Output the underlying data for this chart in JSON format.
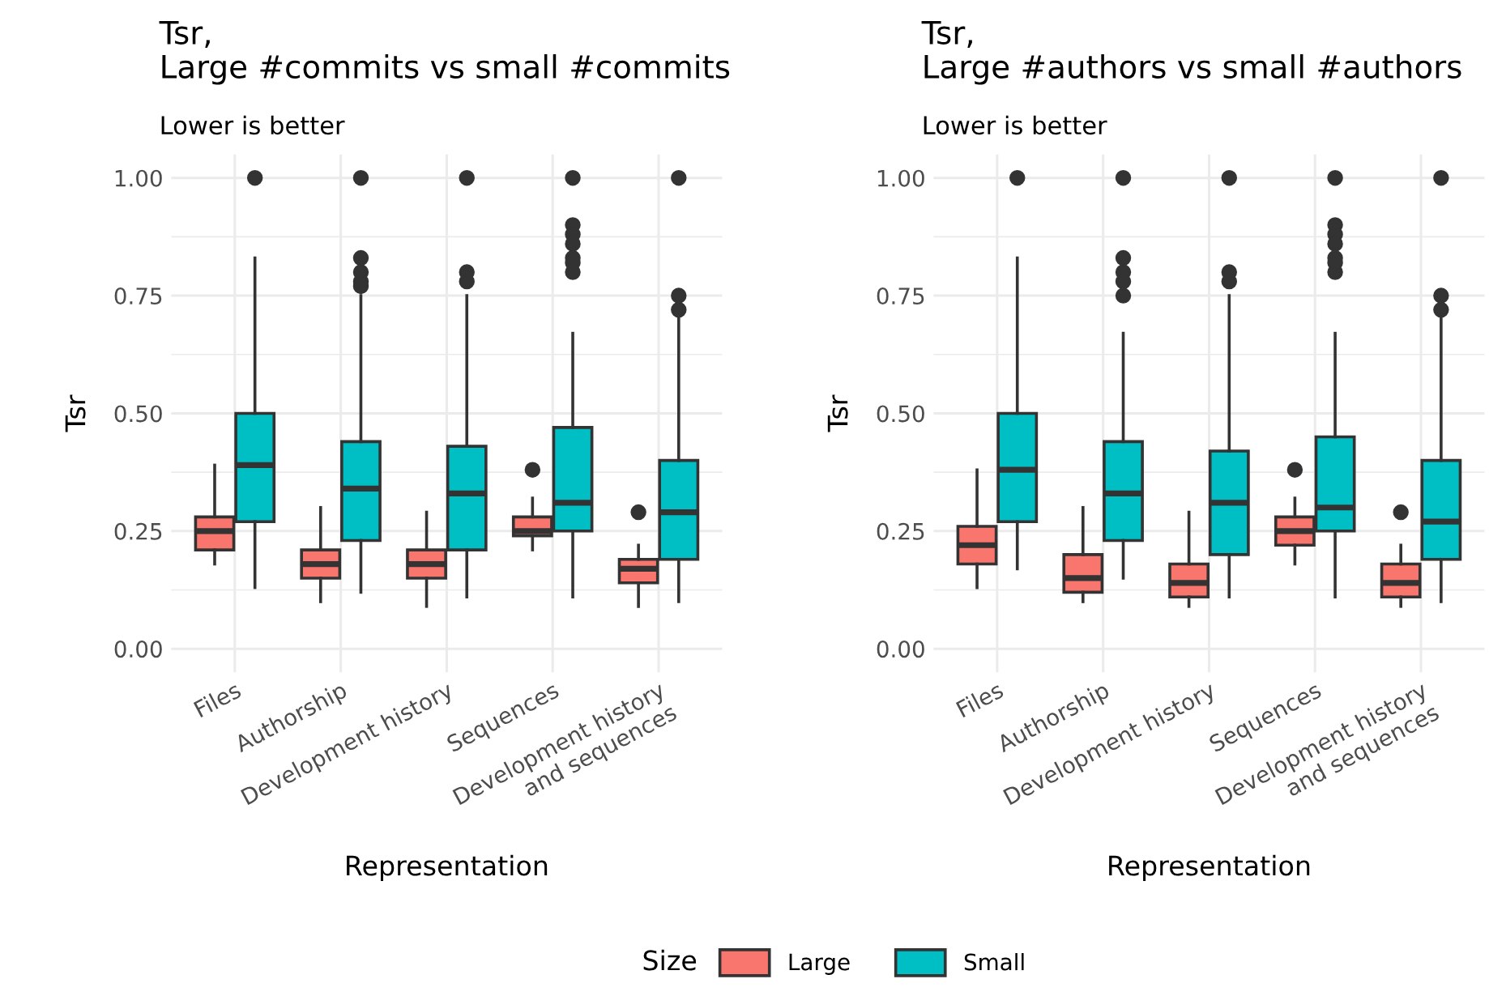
{
  "chart_data": [
    {
      "type": "box",
      "title": "Tsr,\nLarge #commits vs small #commits",
      "subtitle": "Lower is better",
      "xlabel": "Representation",
      "ylabel": "Tsr",
      "legend": "bottom",
      "legend_title": "Size",
      "grid": true,
      "ylim": [
        -0.05,
        1.05
      ],
      "yticks": [
        {
          "value": 0,
          "label": "0.00"
        },
        {
          "value": 0.25,
          "label": "0.25"
        },
        {
          "value": 0.5,
          "label": "0.50"
        },
        {
          "value": 0.75,
          "label": "0.75"
        },
        {
          "value": 1,
          "label": "1.00"
        }
      ],
      "categories": [
        "Files",
        "Authorship",
        "Development history",
        "Sequences",
        "Development history\nand sequences"
      ],
      "series": [
        {
          "name": "Large",
          "color": "#f8766d",
          "boxes": [
            {
              "low": 0.18,
              "q1": 0.21,
              "median": 0.25,
              "q3": 0.28,
              "high": 0.39
            },
            {
              "low": 0.1,
              "q1": 0.15,
              "median": 0.18,
              "q3": 0.21,
              "high": 0.3
            },
            {
              "low": 0.09,
              "q1": 0.15,
              "median": 0.18,
              "q3": 0.21,
              "high": 0.29
            },
            {
              "low": 0.21,
              "q1": 0.24,
              "median": 0.25,
              "q3": 0.28,
              "high": 0.32,
              "outliers": [
                0.38
              ]
            },
            {
              "low": 0.09,
              "q1": 0.14,
              "median": 0.17,
              "q3": 0.19,
              "high": 0.22,
              "outliers": [
                0.29
              ]
            }
          ]
        },
        {
          "name": "Small",
          "color": "#00bfc4",
          "boxes": [
            {
              "low": 0.13,
              "q1": 0.27,
              "median": 0.39,
              "q3": 0.5,
              "high": 0.83,
              "outliers": [
                1.0
              ]
            },
            {
              "low": 0.12,
              "q1": 0.23,
              "median": 0.34,
              "q3": 0.44,
              "high": 0.75,
              "outliers": [
                1.0,
                0.83,
                0.8,
                0.78,
                0.77
              ]
            },
            {
              "low": 0.11,
              "q1": 0.21,
              "median": 0.33,
              "q3": 0.43,
              "high": 0.75,
              "outliers": [
                1.0,
                0.8,
                0.78
              ]
            },
            {
              "low": 0.11,
              "q1": 0.25,
              "median": 0.31,
              "q3": 0.47,
              "high": 0.67,
              "outliers": [
                1.0,
                0.9,
                0.88,
                0.86,
                0.83,
                0.82,
                0.8
              ]
            },
            {
              "low": 0.1,
              "q1": 0.19,
              "median": 0.29,
              "q3": 0.4,
              "high": 0.72,
              "outliers": [
                1.0,
                0.75,
                0.72
              ]
            }
          ]
        }
      ]
    },
    {
      "type": "box",
      "title": "Tsr,\nLarge #authors vs small #authors",
      "subtitle": "Lower is better",
      "xlabel": "Representation",
      "ylabel": "Tsr",
      "grid": true,
      "ylim": [
        -0.05,
        1.05
      ],
      "yticks": [
        {
          "value": 0,
          "label": "0.00"
        },
        {
          "value": 0.25,
          "label": "0.25"
        },
        {
          "value": 0.5,
          "label": "0.50"
        },
        {
          "value": 0.75,
          "label": "0.75"
        },
        {
          "value": 1,
          "label": "1.00"
        }
      ],
      "categories": [
        "Files",
        "Authorship",
        "Development history",
        "Sequences",
        "Development history\nand sequences"
      ],
      "series": [
        {
          "name": "Large",
          "color": "#f8766d",
          "boxes": [
            {
              "low": 0.13,
              "q1": 0.18,
              "median": 0.22,
              "q3": 0.26,
              "high": 0.38
            },
            {
              "low": 0.1,
              "q1": 0.12,
              "median": 0.15,
              "q3": 0.2,
              "high": 0.3
            },
            {
              "low": 0.09,
              "q1": 0.11,
              "median": 0.14,
              "q3": 0.18,
              "high": 0.29
            },
            {
              "low": 0.18,
              "q1": 0.22,
              "median": 0.25,
              "q3": 0.28,
              "high": 0.32,
              "outliers": [
                0.38
              ]
            },
            {
              "low": 0.09,
              "q1": 0.11,
              "median": 0.14,
              "q3": 0.18,
              "high": 0.22,
              "outliers": [
                0.29
              ]
            }
          ]
        },
        {
          "name": "Small",
          "color": "#00bfc4",
          "boxes": [
            {
              "low": 0.17,
              "q1": 0.27,
              "median": 0.38,
              "q3": 0.5,
              "high": 0.83,
              "outliers": [
                1.0
              ]
            },
            {
              "low": 0.15,
              "q1": 0.23,
              "median": 0.33,
              "q3": 0.44,
              "high": 0.67,
              "outliers": [
                1.0,
                0.83,
                0.8,
                0.78,
                0.75
              ]
            },
            {
              "low": 0.11,
              "q1": 0.2,
              "median": 0.31,
              "q3": 0.42,
              "high": 0.75,
              "outliers": [
                1.0,
                0.8,
                0.78
              ]
            },
            {
              "low": 0.11,
              "q1": 0.25,
              "median": 0.3,
              "q3": 0.45,
              "high": 0.67,
              "outliers": [
                1.0,
                0.9,
                0.88,
                0.86,
                0.83,
                0.82,
                0.8
              ]
            },
            {
              "low": 0.1,
              "q1": 0.19,
              "median": 0.27,
              "q3": 0.4,
              "high": 0.72,
              "outliers": [
                1.0,
                0.75,
                0.72
              ]
            }
          ]
        }
      ]
    }
  ]
}
